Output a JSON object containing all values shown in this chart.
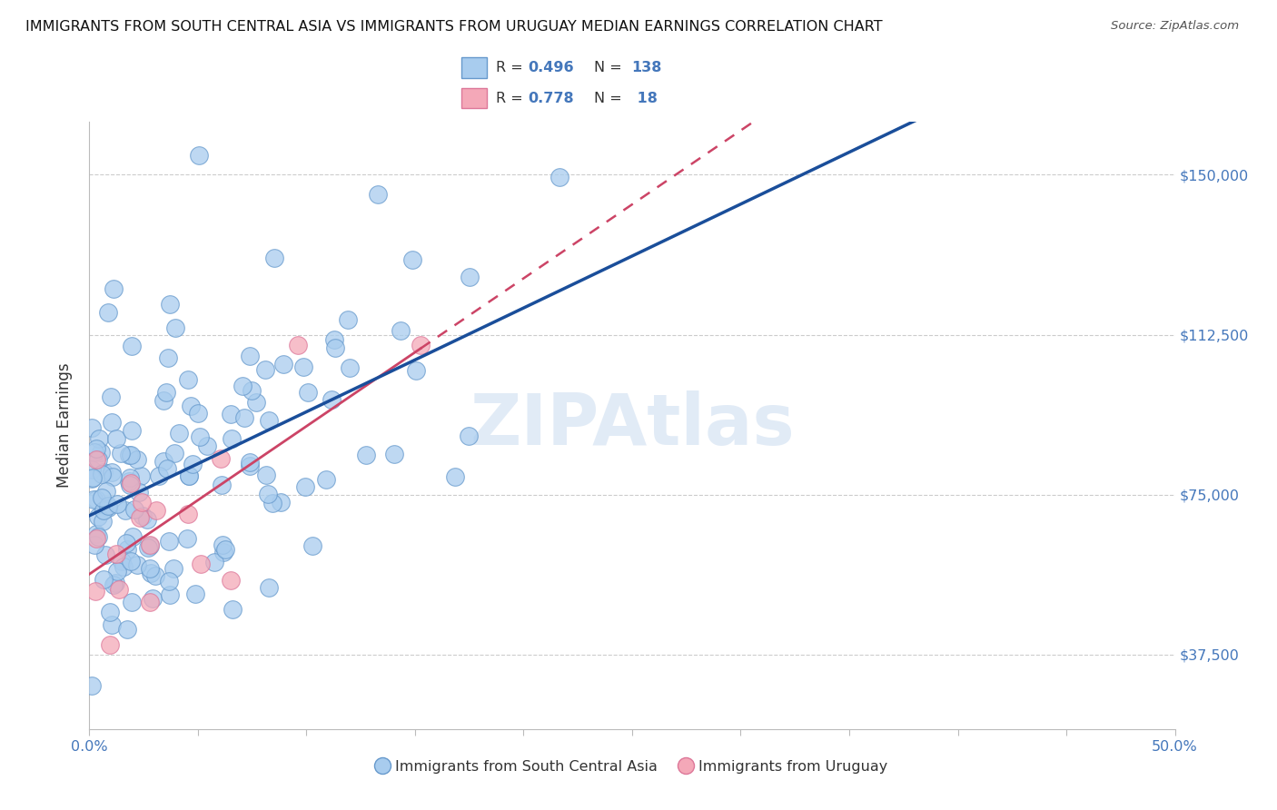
{
  "title": "IMMIGRANTS FROM SOUTH CENTRAL ASIA VS IMMIGRANTS FROM URUGUAY MEDIAN EARNINGS CORRELATION CHART",
  "source": "Source: ZipAtlas.com",
  "ylabel": "Median Earnings",
  "xlim": [
    0.0,
    0.5
  ],
  "ylim": [
    20000,
    162500
  ],
  "yticks": [
    37500,
    75000,
    112500,
    150000
  ],
  "ytick_labels": [
    "$37,500",
    "$75,000",
    "$112,500",
    "$150,000"
  ],
  "xticks": [
    0.0,
    0.05,
    0.1,
    0.15,
    0.2,
    0.25,
    0.3,
    0.35,
    0.4,
    0.45,
    0.5
  ],
  "xtick_labels_show": [
    "0.0%",
    "",
    "",
    "",
    "",
    "",
    "",
    "",
    "",
    "",
    "50.0%"
  ],
  "series1_color": "#A8CCEE",
  "series2_color": "#F4A8B8",
  "series1_edge": "#6699CC",
  "series2_edge": "#DD7799",
  "trend1_color": "#1A4E9A",
  "trend2_color": "#CC4466",
  "R1": 0.496,
  "N1": 138,
  "R2": 0.778,
  "N2": 18,
  "legend_label1": "Immigrants from South Central Asia",
  "legend_label2": "Immigrants from Uruguay",
  "watermark": "ZIPAtlas",
  "title_color": "#111111",
  "axis_color": "#4477BB",
  "background_color": "#FFFFFF",
  "grid_color": "#CCCCCC",
  "seed1": 42,
  "seed2": 7
}
